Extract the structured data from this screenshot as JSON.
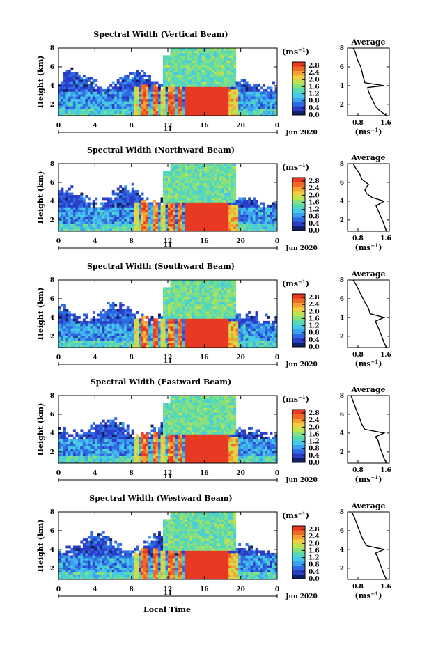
{
  "figure": {
    "date_label": "Jun 2020",
    "day_label": "11",
    "xlabel_bottom": "Local Time",
    "unit_label": "(ms",
    "unit_sup": "−1",
    "unit_close": ")",
    "average_title": "Average"
  },
  "colors": {
    "colormap": [
      "#102060",
      "#2a3cc8",
      "#2f6ae0",
      "#3da0f0",
      "#46c8e8",
      "#55d8b8",
      "#86e080",
      "#c0e050",
      "#f0d040",
      "#f8a030",
      "#f06828",
      "#e83a22"
    ]
  },
  "chart_data": [
    {
      "type": "heatmap",
      "title": "Spectral Width (Vertical Beam)",
      "ylabel": "Height (km)",
      "x_ticks": [
        "0",
        "4",
        "8",
        "12",
        "16",
        "20",
        "0"
      ],
      "x_range": [
        0,
        24
      ],
      "y_ticks": [
        "2",
        "4",
        "6",
        "8"
      ],
      "y_range": [
        0.8,
        8
      ],
      "colorbar": {
        "ticks": [
          "0.0",
          "0.4",
          "0.8",
          "1.2",
          "1.6",
          "2.0",
          "2.4",
          "2.8"
        ],
        "range": [
          0,
          3.0
        ]
      },
      "average_profile": {
        "xlabel": "(ms",
        "x_ticks": [
          "0.8",
          "1.6"
        ],
        "x_range": [
          0.5,
          1.7
        ],
        "y_ticks": [
          "2",
          "4",
          "6",
          "8"
        ],
        "y_range": [
          0.8,
          8
        ],
        "points": [
          [
            1.62,
            0.8
          ],
          [
            1.55,
            1.0
          ],
          [
            1.4,
            1.4
          ],
          [
            1.3,
            1.8
          ],
          [
            1.25,
            2.2
          ],
          [
            1.2,
            2.6
          ],
          [
            1.15,
            3.0
          ],
          [
            1.1,
            3.4
          ],
          [
            1.08,
            3.8
          ],
          [
            1.55,
            4.0
          ],
          [
            1.0,
            4.3
          ],
          [
            0.96,
            4.8
          ],
          [
            0.92,
            5.4
          ],
          [
            0.88,
            6.0
          ],
          [
            0.8,
            6.6
          ],
          [
            0.75,
            7.2
          ],
          [
            0.72,
            7.6
          ],
          [
            0.66,
            8.0
          ]
        ]
      }
    },
    {
      "type": "heatmap",
      "title": "Spectral Width (Northward Beam)",
      "ylabel": "Height (km)",
      "x_ticks": [
        "0",
        "4",
        "8",
        "12",
        "16",
        "20",
        "0"
      ],
      "x_range": [
        0,
        24
      ],
      "y_ticks": [
        "2",
        "4",
        "6",
        "8"
      ],
      "y_range": [
        0.8,
        8
      ],
      "colorbar": {
        "ticks": [
          "0.0",
          "0.4",
          "0.8",
          "1.2",
          "1.6",
          "2.0",
          "2.4",
          "2.8"
        ],
        "range": [
          0,
          3.0
        ]
      },
      "average_profile": {
        "xlabel": "(ms",
        "x_ticks": [
          "0.8",
          "1.6"
        ],
        "x_range": [
          0.5,
          1.7
        ],
        "y_ticks": [
          "2",
          "4",
          "6",
          "8"
        ],
        "y_range": [
          0.8,
          8
        ],
        "points": [
          [
            1.62,
            0.8
          ],
          [
            1.58,
            1.2
          ],
          [
            1.52,
            1.8
          ],
          [
            1.45,
            2.4
          ],
          [
            1.38,
            3.0
          ],
          [
            1.32,
            3.5
          ],
          [
            1.55,
            4.0
          ],
          [
            1.2,
            4.4
          ],
          [
            1.05,
            4.8
          ],
          [
            1.0,
            5.2
          ],
          [
            1.1,
            5.8
          ],
          [
            0.92,
            6.3
          ],
          [
            0.85,
            6.9
          ],
          [
            0.74,
            7.5
          ],
          [
            0.66,
            8.0
          ]
        ]
      }
    },
    {
      "type": "heatmap",
      "title": "Spectral Width (Southward Beam)",
      "ylabel": "Height (km)",
      "x_ticks": [
        "0",
        "4",
        "8",
        "12",
        "16",
        "20",
        "0"
      ],
      "x_range": [
        0,
        24
      ],
      "y_ticks": [
        "2",
        "4",
        "6",
        "8"
      ],
      "y_range": [
        0.8,
        8
      ],
      "colorbar": {
        "ticks": [
          "0.0",
          "0.4",
          "0.8",
          "1.2",
          "1.6",
          "2.0",
          "2.4",
          "2.8"
        ],
        "range": [
          0,
          3.0
        ]
      },
      "average_profile": {
        "xlabel": "(ms",
        "x_ticks": [
          "0.8",
          "1.6"
        ],
        "x_range": [
          0.5,
          1.7
        ],
        "y_ticks": [
          "2",
          "4",
          "6",
          "8"
        ],
        "y_range": [
          0.8,
          8
        ],
        "points": [
          [
            1.62,
            0.8
          ],
          [
            1.55,
            1.3
          ],
          [
            1.48,
            2.0
          ],
          [
            1.42,
            2.6
          ],
          [
            1.35,
            3.2
          ],
          [
            1.3,
            3.6
          ],
          [
            1.55,
            4.0
          ],
          [
            1.15,
            4.4
          ],
          [
            1.1,
            5.0
          ],
          [
            1.0,
            5.6
          ],
          [
            0.92,
            6.2
          ],
          [
            0.84,
            6.8
          ],
          [
            0.76,
            7.4
          ],
          [
            0.66,
            8.0
          ]
        ]
      }
    },
    {
      "type": "heatmap",
      "title": "Spectral Width (Eastward Beam)",
      "ylabel": "Height (km)",
      "x_ticks": [
        "0",
        "4",
        "8",
        "12",
        "16",
        "20",
        "0"
      ],
      "x_range": [
        0,
        24
      ],
      "y_ticks": [
        "2",
        "4",
        "6",
        "8"
      ],
      "y_range": [
        0.8,
        8
      ],
      "colorbar": {
        "ticks": [
          "0.0",
          "0.4",
          "0.8",
          "1.2",
          "1.6",
          "2.0",
          "2.4",
          "2.8"
        ],
        "range": [
          0,
          3.0
        ]
      },
      "average_profile": {
        "xlabel": "(ms",
        "x_ticks": [
          "0.8",
          "1.6"
        ],
        "x_range": [
          0.5,
          1.7
        ],
        "y_ticks": [
          "2",
          "4",
          "6",
          "8"
        ],
        "y_range": [
          0.8,
          8
        ],
        "points": [
          [
            1.62,
            0.8
          ],
          [
            1.55,
            1.3
          ],
          [
            1.48,
            2.0
          ],
          [
            1.42,
            2.6
          ],
          [
            1.38,
            3.2
          ],
          [
            1.3,
            3.6
          ],
          [
            1.55,
            4.0
          ],
          [
            1.0,
            4.4
          ],
          [
            0.9,
            5.0
          ],
          [
            0.85,
            5.6
          ],
          [
            0.78,
            6.2
          ],
          [
            0.72,
            6.8
          ],
          [
            0.66,
            7.4
          ],
          [
            0.6,
            8.0
          ]
        ]
      }
    },
    {
      "type": "heatmap",
      "title": "Spectral Width (Westward Beam)",
      "ylabel": "Height (km)",
      "x_ticks": [
        "0",
        "4",
        "8",
        "12",
        "16",
        "20",
        "0"
      ],
      "x_range": [
        0,
        24
      ],
      "y_ticks": [
        "2",
        "4",
        "6",
        "8"
      ],
      "y_range": [
        0.8,
        8
      ],
      "colorbar": {
        "ticks": [
          "0.0",
          "0.4",
          "0.8",
          "1.2",
          "1.6",
          "2.0",
          "2.4",
          "2.8"
        ],
        "range": [
          0,
          3.0
        ]
      },
      "average_profile": {
        "xlabel": "(ms",
        "x_ticks": [
          "0.8",
          "1.6"
        ],
        "x_range": [
          0.5,
          1.7
        ],
        "y_ticks": [
          "2",
          "4",
          "6",
          "8"
        ],
        "y_range": [
          0.8,
          8
        ],
        "points": [
          [
            1.62,
            0.8
          ],
          [
            1.55,
            1.3
          ],
          [
            1.48,
            2.0
          ],
          [
            1.42,
            2.6
          ],
          [
            1.36,
            3.2
          ],
          [
            1.3,
            3.6
          ],
          [
            1.55,
            4.0
          ],
          [
            1.05,
            4.4
          ],
          [
            0.95,
            5.0
          ],
          [
            0.88,
            5.6
          ],
          [
            0.82,
            6.2
          ],
          [
            0.76,
            6.8
          ],
          [
            0.7,
            7.4
          ],
          [
            0.62,
            8.0
          ]
        ]
      }
    }
  ]
}
